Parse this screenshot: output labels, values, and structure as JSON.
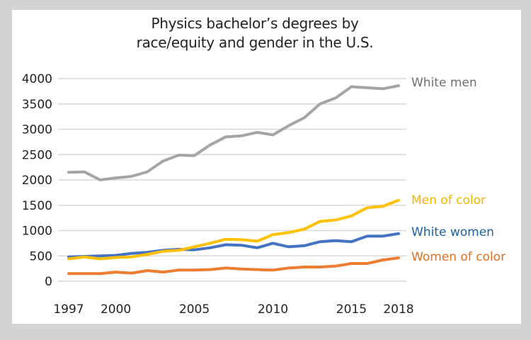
{
  "chart_data": {
    "type": "line",
    "title": "Physics bachelor’s degrees by race/equity and gender in the U.S.",
    "title_lines": [
      "Physics bachelor’s degrees by",
      "race/equity and gender in the U.S."
    ],
    "xlabel": "",
    "ylabel": "",
    "x": [
      1997,
      1998,
      1999,
      2000,
      2001,
      2002,
      2003,
      2004,
      2005,
      2006,
      2007,
      2008,
      2009,
      2010,
      2011,
      2012,
      2013,
      2014,
      2015,
      2016,
      2017,
      2018
    ],
    "xlim": [
      1997,
      2018
    ],
    "ylim": [
      0,
      4000
    ],
    "x_ticks": [
      1997,
      2000,
      2005,
      2010,
      2015,
      2018
    ],
    "x_tick_labels": [
      "1997",
      "2000",
      "2005",
      "2010",
      "2015",
      "2018"
    ],
    "y_ticks": [
      0,
      500,
      1000,
      1500,
      2000,
      2500,
      3000,
      3500,
      4000
    ],
    "y_tick_labels": [
      "0",
      "500",
      "1000",
      "1500",
      "2000",
      "2500",
      "3000",
      "3500",
      "4000"
    ],
    "grid": true,
    "legend": "right, labels at line ends",
    "series": [
      {
        "name": "White men",
        "line_color": "#a5a5a5",
        "label_color": "#6d6e71",
        "values": [
          2150,
          2160,
          2000,
          2040,
          2070,
          2160,
          2370,
          2490,
          2480,
          2690,
          2850,
          2870,
          2940,
          2890,
          3070,
          3230,
          3500,
          3620,
          3840,
          3820,
          3800,
          3860
        ]
      },
      {
        "name": "Men of color",
        "line_color": "#ffc000",
        "label_color": "#f5b400",
        "values": [
          440,
          480,
          440,
          470,
          480,
          530,
          590,
          610,
          680,
          750,
          830,
          820,
          790,
          920,
          960,
          1030,
          1180,
          1210,
          1290,
          1450,
          1480,
          1600
        ]
      },
      {
        "name": "White women",
        "line_color": "#4472c4",
        "label_color": "#1b5fa0",
        "values": [
          480,
          490,
          500,
          510,
          550,
          570,
          610,
          630,
          620,
          660,
          720,
          710,
          660,
          750,
          680,
          700,
          780,
          800,
          780,
          890,
          890,
          940
        ]
      },
      {
        "name": "Women of color",
        "line_color": "#ed7d31",
        "label_color": "#e07020",
        "values": [
          150,
          150,
          150,
          180,
          160,
          210,
          180,
          220,
          220,
          230,
          260,
          240,
          230,
          220,
          260,
          280,
          280,
          300,
          350,
          350,
          420,
          460
        ]
      }
    ]
  }
}
